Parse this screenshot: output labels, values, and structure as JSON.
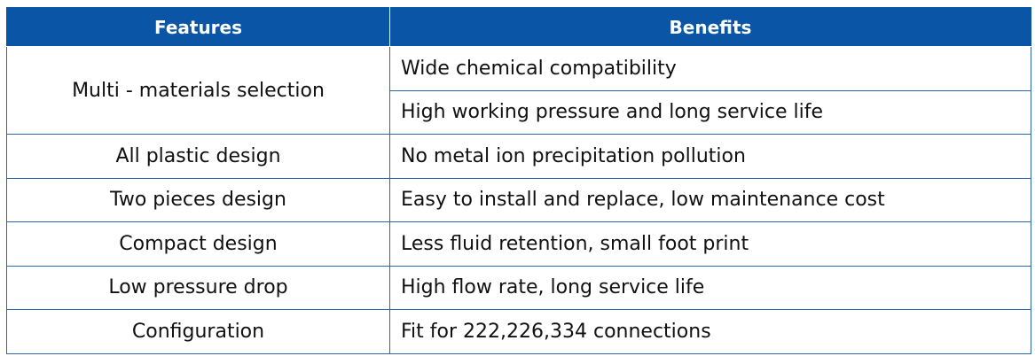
{
  "table": {
    "headers": [
      "Features",
      "Benefits"
    ],
    "rows": [
      {
        "feature": "Multi - materials selection",
        "benefits": [
          "Wide chemical compatibility",
          "High working pressure and long service life"
        ]
      },
      {
        "feature": "All plastic design",
        "benefits": [
          "No metal ion precipitation pollution"
        ]
      },
      {
        "feature": "Two pieces design",
        "benefits": [
          "Easy to install and replace, low maintenance cost"
        ]
      },
      {
        "feature": "Compact design",
        "benefits": [
          "Less fluid retention, small foot print"
        ]
      },
      {
        "feature": "Low pressure drop",
        "benefits": [
          "High flow rate, long service life"
        ]
      },
      {
        "feature": "Configuration",
        "benefits": [
          "Fit for 222,226,334 connections"
        ]
      }
    ]
  },
  "colors": {
    "header_bg": "#0a55a6",
    "header_text": "#ffffff",
    "border": "#2a65b0"
  }
}
